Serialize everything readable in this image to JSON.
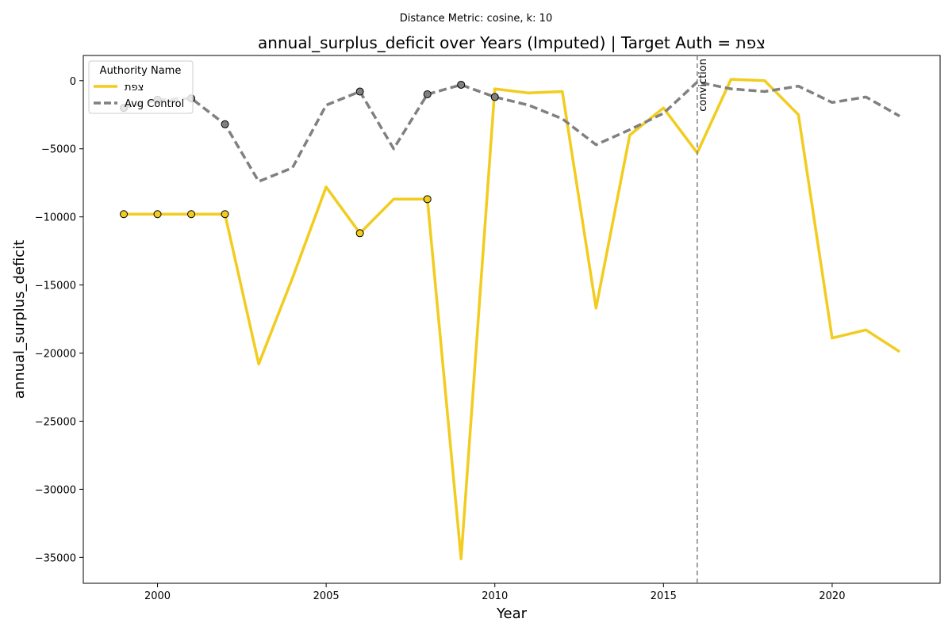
{
  "chart_data": {
    "type": "line",
    "suptitle": "Distance Metric: cosine, k: 10",
    "title": "annual_surplus_deficit over Years (Imputed) | Target Auth = צפת",
    "xlabel": "Year",
    "ylabel": "annual_surplus_deficit",
    "xlim": [
      1997.8,
      2023.2
    ],
    "ylim": [
      -36900,
      1850
    ],
    "x_ticks": [
      2000,
      2005,
      2010,
      2015,
      2020
    ],
    "y_ticks": [
      0,
      -5000,
      -10000,
      -15000,
      -20000,
      -25000,
      -30000,
      -35000
    ],
    "x_tick_labels": [
      "2000",
      "2005",
      "2010",
      "2015",
      "2020"
    ],
    "y_tick_labels": [
      "0",
      "−5000",
      "−10000",
      "−15000",
      "−20000",
      "−25000",
      "−30000",
      "−35000"
    ],
    "grid": false,
    "x": [
      1999,
      2000,
      2001,
      2002,
      2003,
      2004,
      2005,
      2006,
      2007,
      2008,
      2009,
      2010,
      2011,
      2012,
      2013,
      2014,
      2015,
      2016,
      2017,
      2018,
      2019,
      2020,
      2021,
      2022
    ],
    "legend": {
      "title": "Authority Name",
      "placement": "upper-left"
    },
    "series": [
      {
        "name": "צפת",
        "color": "#f2cc1f",
        "style": "solid",
        "values": [
          -9800,
          -9800,
          -9800,
          -9800,
          -20800,
          -14500,
          -7800,
          -11200,
          -8700,
          -8700,
          -35100,
          -600,
          -900,
          -800,
          -16700,
          -4000,
          -2000,
          -5300,
          100,
          0,
          -2500,
          -18900,
          -18300,
          -19900
        ],
        "imputed_years": [
          1999,
          2000,
          2001,
          2002,
          2006,
          2008
        ]
      },
      {
        "name": "Avg Control",
        "color": "#808080",
        "style": "dashed",
        "values": [
          -2000,
          -1400,
          -1300,
          -3200,
          -7400,
          -6400,
          -1800,
          -800,
          -5000,
          -1000,
          -300,
          -1200,
          -1800,
          -2800,
          -4700,
          -3600,
          -2400,
          -100,
          -600,
          -800,
          -400,
          -1600,
          -1200,
          -2600
        ],
        "imputed_years": [
          1999,
          2000,
          2001,
          2002,
          2006,
          2008,
          2009,
          2010
        ]
      }
    ],
    "annotations": [
      {
        "type": "vline",
        "x": 2016,
        "label": "conviction",
        "color": "#808080",
        "style": "dashed"
      }
    ]
  }
}
